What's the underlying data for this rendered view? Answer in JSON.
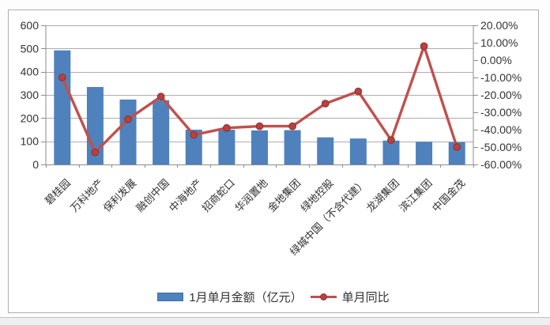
{
  "chart_data": {
    "type": "bar+line",
    "title": "",
    "categories": [
      "碧桂园",
      "万科地产",
      "保利发展",
      "融创中国",
      "中海地产",
      "招商蛇口",
      "华润置地",
      "金地集团",
      "绿地控股",
      "绿城中国（不含代建）",
      "龙湖集团",
      "滨江集团",
      "中国金茂"
    ],
    "series": [
      {
        "name": "1月单月金额（亿元）",
        "type": "bar",
        "axis": "left",
        "color": "#4f81bd",
        "values": [
          492,
          334,
          280,
          277,
          150,
          150,
          147,
          148,
          117,
          112,
          103,
          98,
          96
        ]
      },
      {
        "name": "单月同比",
        "type": "line",
        "axis": "right",
        "color": "#c0504d",
        "marker_color": "#b8413e",
        "marker_edge_color": "#8e3634",
        "values": [
          -10,
          -53,
          -34,
          -21,
          -43,
          -39,
          -38,
          -38,
          -25,
          -18,
          -46,
          8,
          -50
        ]
      }
    ],
    "left_axis": {
      "min": 0,
      "max": 600,
      "step": 100,
      "tick_labels": [
        "0",
        "100",
        "200",
        "300",
        "400",
        "500",
        "600"
      ]
    },
    "right_axis": {
      "min": -60,
      "max": 20,
      "step": 10,
      "format": "0.00%",
      "tick_labels": [
        "20.00%",
        "10.00%",
        "0.00%",
        "-10.00%",
        "-20.00%",
        "-30.00%",
        "-40.00%",
        "-50.00%",
        "-60.00%"
      ]
    },
    "grid": "horizontal",
    "legend_position": "bottom",
    "colors": {
      "gridline": "#adadad",
      "axis": "#8c8c8c",
      "tick_text": "#333333",
      "plot_background": "#ffffff",
      "frame_border": "#aeaeae"
    }
  }
}
